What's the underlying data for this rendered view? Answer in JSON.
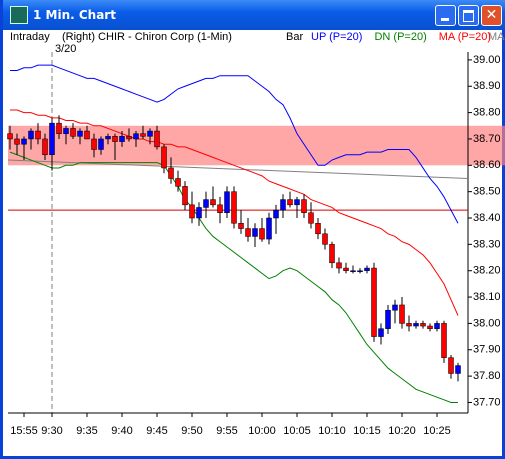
{
  "window": {
    "title": "1 Min. Chart"
  },
  "chart_data": {
    "type": "candlestick",
    "mode": "Intraday",
    "title": "(Right) CHIR - Chiron Corp (1-Min)",
    "date": "3/20",
    "bar_type": "Bar",
    "legend_extra": "MA",
    "categories": [
      null,
      null,
      "15:55",
      null,
      null,
      null,
      "9:30",
      null,
      null,
      null,
      null,
      "9:35",
      null,
      null,
      null,
      null,
      "9:40",
      null,
      null,
      null,
      null,
      "9:45",
      null,
      null,
      null,
      null,
      "9:50",
      null,
      null,
      null,
      null,
      "9:55",
      null,
      null,
      null,
      null,
      "10:00",
      null,
      null,
      null,
      null,
      "10:05",
      null,
      null,
      null,
      null,
      "10:10",
      null,
      null,
      null,
      null,
      "10:15",
      null,
      null,
      null,
      null,
      "10:20",
      null,
      null,
      null,
      null,
      "10:25",
      null,
      null,
      null
    ],
    "open": [
      38.72,
      38.7,
      38.68,
      38.7,
      38.73,
      38.7,
      38.64,
      38.76,
      38.72,
      38.74,
      38.71,
      38.73,
      38.7,
      38.66,
      38.7,
      38.71,
      38.69,
      38.71,
      38.7,
      38.72,
      38.71,
      38.73,
      38.67,
      38.59,
      38.55,
      38.52,
      38.45,
      38.4,
      38.44,
      38.47,
      38.45,
      38.42,
      38.5,
      38.38,
      38.36,
      38.33,
      38.36,
      38.32,
      38.4,
      38.43,
      38.47,
      38.45,
      38.47,
      38.42,
      38.38,
      38.34,
      38.3,
      38.23,
      38.21,
      38.2,
      38.2,
      38.2,
      38.21,
      37.95,
      37.98,
      38.05,
      38.07,
      38.0,
      37.99,
      38.0,
      37.99,
      37.98,
      38.0,
      37.87,
      37.81
    ],
    "high": [
      38.75,
      38.72,
      38.71,
      38.74,
      38.76,
      38.72,
      38.78,
      38.79,
      38.75,
      38.76,
      38.74,
      38.75,
      38.72,
      38.71,
      38.72,
      38.72,
      38.73,
      38.74,
      38.73,
      38.75,
      38.74,
      38.75,
      38.68,
      38.63,
      38.58,
      38.54,
      38.5,
      38.46,
      38.5,
      38.52,
      38.48,
      38.52,
      38.52,
      38.43,
      38.4,
      38.38,
      38.4,
      38.42,
      38.45,
      38.49,
      38.5,
      38.48,
      38.49,
      38.46,
      38.4,
      38.36,
      38.31,
      38.25,
      38.23,
      38.22,
      38.21,
      38.22,
      38.23,
      38.0,
      38.07,
      38.09,
      38.1,
      38.03,
      38.01,
      38.01,
      38.0,
      38.01,
      38.01,
      37.88,
      37.85
    ],
    "low": [
      38.66,
      38.64,
      38.62,
      38.66,
      38.68,
      38.62,
      38.58,
      38.7,
      38.68,
      38.7,
      38.68,
      38.7,
      38.63,
      38.64,
      38.68,
      38.62,
      38.67,
      38.69,
      38.67,
      38.7,
      38.68,
      38.66,
      38.57,
      38.53,
      38.5,
      38.43,
      38.38,
      38.37,
      38.4,
      38.44,
      38.38,
      38.4,
      38.36,
      38.34,
      38.31,
      38.29,
      38.31,
      38.3,
      38.34,
      38.4,
      38.44,
      38.4,
      38.4,
      38.36,
      38.32,
      38.28,
      38.21,
      38.19,
      38.19,
      38.19,
      38.19,
      38.19,
      37.93,
      37.92,
      37.96,
      38.0,
      37.98,
      37.97,
      37.98,
      37.98,
      37.97,
      37.97,
      37.85,
      37.79,
      37.78
    ],
    "close": [
      38.7,
      38.68,
      38.7,
      38.73,
      38.7,
      38.64,
      38.76,
      38.72,
      38.74,
      38.71,
      38.73,
      38.7,
      38.66,
      38.7,
      38.71,
      38.69,
      38.71,
      38.7,
      38.72,
      38.71,
      38.73,
      38.67,
      38.59,
      38.55,
      38.52,
      38.45,
      38.4,
      38.44,
      38.47,
      38.45,
      38.42,
      38.5,
      38.38,
      38.36,
      38.33,
      38.36,
      38.32,
      38.4,
      38.43,
      38.47,
      38.45,
      38.47,
      38.42,
      38.38,
      38.34,
      38.3,
      38.23,
      38.21,
      38.2,
      38.2,
      38.2,
      38.21,
      37.95,
      37.98,
      38.05,
      38.07,
      38.0,
      37.99,
      38.0,
      37.99,
      37.98,
      38.0,
      37.87,
      37.81,
      37.84
    ],
    "up_color": "#0000ff",
    "down_color": "#ff0000",
    "wick_color": "#000000",
    "series": [
      {
        "name": "UP (P=20)",
        "color": "#0000ff",
        "values": [
          38.96,
          38.96,
          38.97,
          38.97,
          38.98,
          38.98,
          38.98,
          38.97,
          38.96,
          38.95,
          38.94,
          38.93,
          38.93,
          38.92,
          38.91,
          38.9,
          38.89,
          38.88,
          38.87,
          38.86,
          38.85,
          38.84,
          38.85,
          38.87,
          38.89,
          38.9,
          38.91,
          38.92,
          38.93,
          38.93,
          38.94,
          38.94,
          38.94,
          38.94,
          38.94,
          38.92,
          38.9,
          38.88,
          38.85,
          38.83,
          38.78,
          38.72,
          38.68,
          38.64,
          38.6,
          38.6,
          38.62,
          38.63,
          38.64,
          38.64,
          38.64,
          38.65,
          38.65,
          38.65,
          38.66,
          38.66,
          38.66,
          38.66,
          38.63,
          38.59,
          38.55,
          38.52,
          38.48,
          38.43,
          38.38
        ]
      },
      {
        "name": "DN (P=20)",
        "color": "#008000",
        "values": [
          38.65,
          38.64,
          38.63,
          38.62,
          38.61,
          38.6,
          38.59,
          38.59,
          38.6,
          38.6,
          38.61,
          38.61,
          38.61,
          38.61,
          38.61,
          38.61,
          38.61,
          38.61,
          38.61,
          38.61,
          38.61,
          38.61,
          38.6,
          38.56,
          38.52,
          38.47,
          38.44,
          38.4,
          38.36,
          38.33,
          38.31,
          38.29,
          38.27,
          38.25,
          38.23,
          38.21,
          38.19,
          38.17,
          38.18,
          38.2,
          38.21,
          38.2,
          38.18,
          38.16,
          38.14,
          38.12,
          38.09,
          38.07,
          38.04,
          38.0,
          37.96,
          37.92,
          37.89,
          37.86,
          37.83,
          37.81,
          37.79,
          37.77,
          37.75,
          37.74,
          37.73,
          37.72,
          37.71,
          37.7,
          37.7
        ]
      },
      {
        "name": "MA (P=20)",
        "color": "#ff0000",
        "values": [
          38.81,
          38.81,
          38.8,
          38.8,
          38.79,
          38.79,
          38.78,
          38.78,
          38.77,
          38.77,
          38.76,
          38.76,
          38.75,
          38.75,
          38.74,
          38.73,
          38.72,
          38.71,
          38.7,
          38.7,
          38.69,
          38.69,
          38.68,
          38.68,
          38.67,
          38.67,
          38.66,
          38.65,
          38.64,
          38.63,
          38.62,
          38.61,
          38.6,
          38.59,
          38.58,
          38.57,
          38.56,
          38.54,
          38.53,
          38.52,
          38.51,
          38.5,
          38.49,
          38.47,
          38.46,
          38.45,
          38.44,
          38.42,
          38.41,
          38.4,
          38.39,
          38.38,
          38.37,
          38.36,
          38.34,
          38.33,
          38.31,
          38.3,
          38.28,
          38.26,
          38.23,
          38.19,
          38.15,
          38.09,
          38.03
        ]
      }
    ],
    "zone": [
      38.6,
      38.75
    ],
    "zone_color": "#ff8080",
    "hline": {
      "value": 38.43,
      "color": "#d00000"
    },
    "trendline": {
      "values": [
        38.62,
        38.55
      ],
      "color": "#808080"
    },
    "ylim": [
      37.66,
      39.03
    ],
    "yticks": [
      {
        "value": 39.0,
        "label": "39.00"
      },
      {
        "value": 38.9,
        "label": "38.90"
      },
      {
        "value": 38.8,
        "label": "38.80"
      },
      {
        "value": 38.7,
        "label": "38.70"
      },
      {
        "value": 38.6,
        "label": "38.60"
      },
      {
        "value": 38.5,
        "label": "38.50"
      },
      {
        "value": 38.4,
        "label": "38.40"
      },
      {
        "value": 38.3,
        "label": "38.30"
      },
      {
        "value": 38.2,
        "label": "38.20"
      },
      {
        "value": 38.1,
        "label": "38.10"
      },
      {
        "value": 38.0,
        "label": "38.00"
      },
      {
        "value": 37.9,
        "label": "37.90"
      },
      {
        "value": 37.8,
        "label": "37.80"
      },
      {
        "value": 37.7,
        "label": "37.70"
      }
    ]
  }
}
